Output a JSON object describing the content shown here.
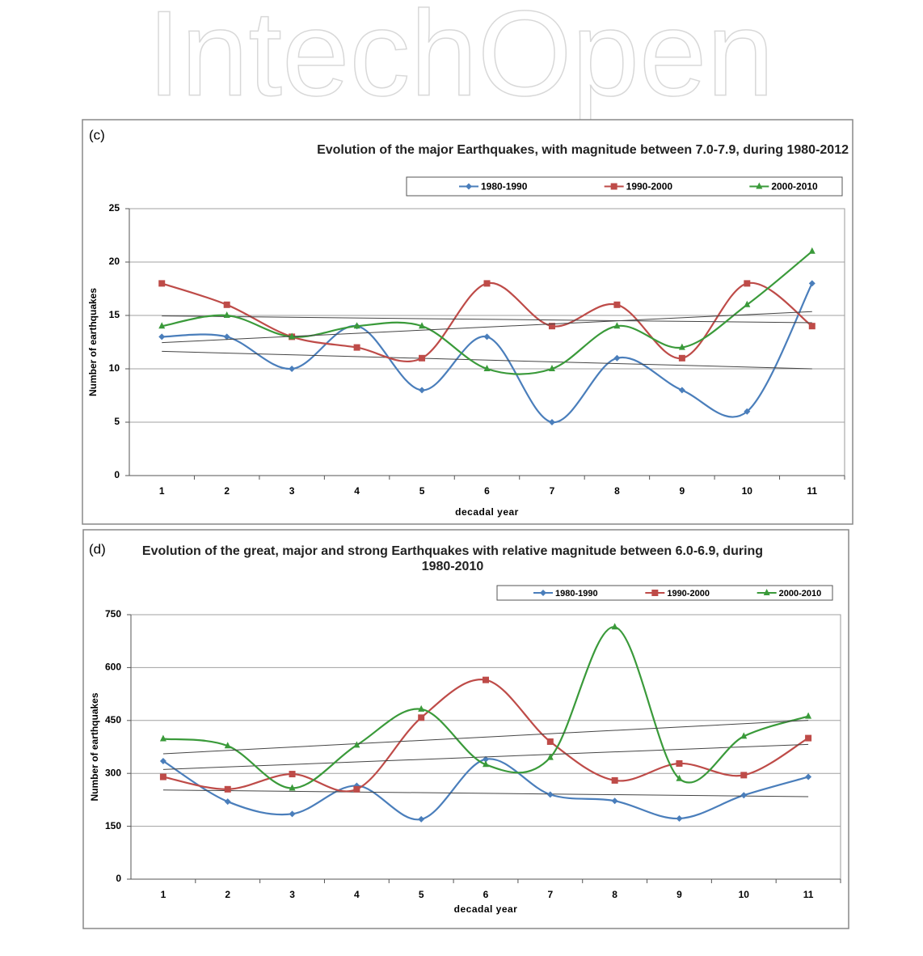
{
  "watermark": "IntechOpen",
  "chart_data": [
    {
      "type": "line",
      "panel_label": "(c)",
      "title": "Evolution of the major Earthquakes, with magnitude between 7.0-7.9, during 1980-2012",
      "x_label": "decadal year",
      "y_label": "Number of earthquakes",
      "categories": [
        "1",
        "2",
        "3",
        "4",
        "5",
        "6",
        "7",
        "8",
        "9",
        "10",
        "11"
      ],
      "ylim": [
        0,
        25
      ],
      "yticks": [
        0,
        5,
        10,
        15,
        20,
        25
      ],
      "grid": true,
      "smooth": true,
      "trendline": true,
      "legend": "top-right",
      "series": [
        {
          "name": "1980-1990",
          "color": "#4a7ebb",
          "marker": "diamond",
          "values": [
            13,
            13,
            10,
            14,
            8,
            13,
            5,
            11,
            8,
            6,
            18
          ]
        },
        {
          "name": "1990-2000",
          "color": "#be4b48",
          "marker": "square",
          "values": [
            18,
            16,
            13,
            12,
            11,
            18,
            14,
            16,
            11,
            18,
            14
          ]
        },
        {
          "name": "2000-2010",
          "color": "#3a9a3a",
          "marker": "triangle",
          "values": [
            14,
            15,
            13,
            14,
            14,
            10,
            10,
            14,
            12,
            16,
            21
          ]
        }
      ]
    },
    {
      "type": "line",
      "panel_label": "(d)",
      "title": "Evolution of the great, major and strong Earthquakes with relative magnitude between 6.0-6.9, during 1980-2010",
      "x_label": "decadal year",
      "y_label": "Number of earthquakes",
      "categories": [
        "1",
        "2",
        "3",
        "4",
        "5",
        "6",
        "7",
        "8",
        "9",
        "10",
        "11"
      ],
      "ylim": [
        0,
        750
      ],
      "yticks": [
        0,
        150,
        300,
        450,
        600,
        750
      ],
      "grid": true,
      "smooth": true,
      "trendline": true,
      "legend": "top-right",
      "series": [
        {
          "name": "1980-1990",
          "color": "#4a7ebb",
          "marker": "diamond",
          "values": [
            335,
            220,
            185,
            265,
            170,
            340,
            240,
            222,
            172,
            238,
            290
          ]
        },
        {
          "name": "1990-2000",
          "color": "#be4b48",
          "marker": "square",
          "values": [
            290,
            255,
            298,
            255,
            458,
            565,
            390,
            280,
            328,
            295,
            400
          ]
        },
        {
          "name": "2000-2010",
          "color": "#3a9a3a",
          "marker": "triangle",
          "values": [
            398,
            378,
            258,
            380,
            482,
            325,
            345,
            715,
            285,
            405,
            462
          ]
        }
      ]
    }
  ]
}
